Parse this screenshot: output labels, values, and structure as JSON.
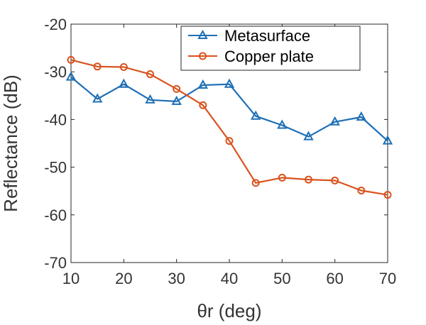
{
  "chart_data": {
    "type": "line",
    "xlabel": "θr (deg)",
    "ylabel": "Reflectance (dB)",
    "xlim": [
      10,
      70
    ],
    "ylim": [
      -70,
      -20
    ],
    "xticks": [
      10,
      20,
      30,
      40,
      50,
      60,
      70
    ],
    "yticks": [
      -70,
      -60,
      -50,
      -40,
      -30,
      -20
    ],
    "legend_position": "top-right",
    "x": [
      10,
      15,
      20,
      25,
      30,
      35,
      40,
      45,
      50,
      55,
      60,
      65,
      70
    ],
    "series": [
      {
        "name": "Metasurface",
        "color": "#1f6fb5",
        "marker": "triangle",
        "values": [
          -31.1,
          -35.7,
          -32.6,
          -35.9,
          -36.2,
          -32.8,
          -32.6,
          -39.3,
          -41.2,
          -43.6,
          -40.5,
          -39.5,
          -44.5
        ]
      },
      {
        "name": "Copper plate",
        "color": "#d9531e",
        "marker": "circle",
        "values": [
          -27.5,
          -28.9,
          -29.0,
          -30.5,
          -33.6,
          -37.0,
          -44.5,
          -53.3,
          -52.2,
          -52.6,
          -52.8,
          -54.9,
          -55.8
        ]
      }
    ]
  }
}
